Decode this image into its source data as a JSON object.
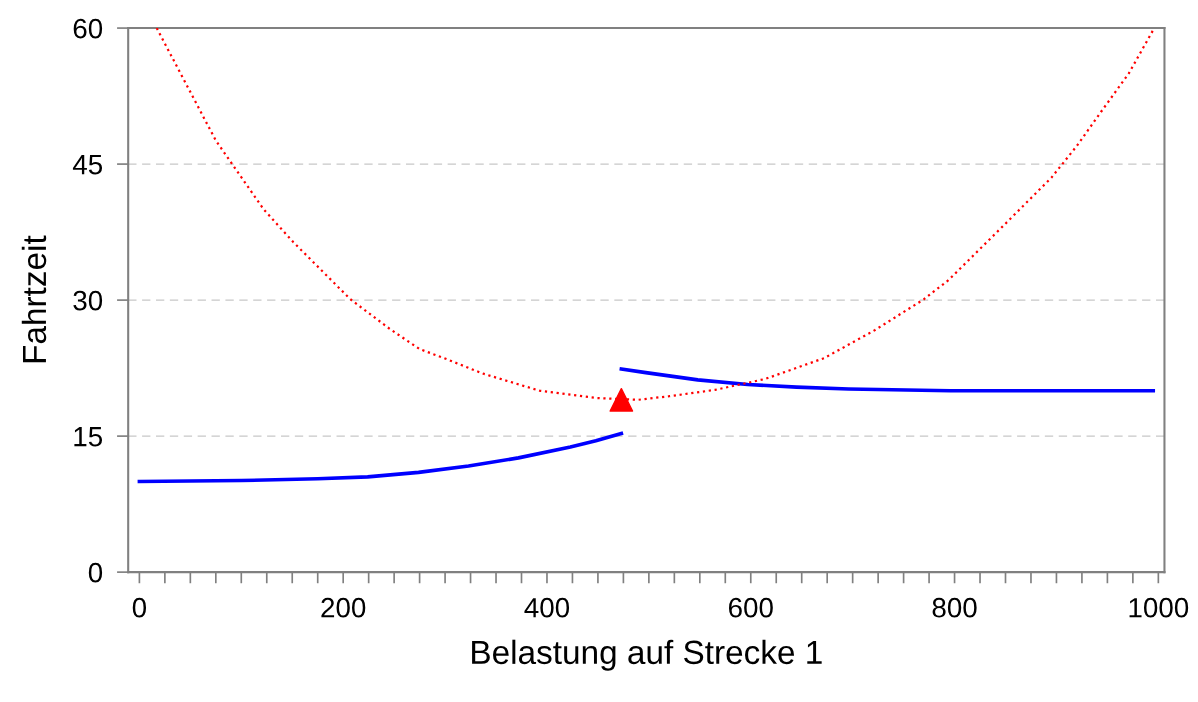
{
  "chart_data": {
    "type": "line",
    "xlabel": "Belastung auf Strecke 1",
    "ylabel": "Fahrtzeit",
    "xlim": [
      -11,
      1006
    ],
    "ylim": [
      0,
      60
    ],
    "xticks": [
      0,
      {
        "value": 25,
        "label": null
      },
      {
        "value": 50,
        "label": null
      },
      {
        "value": 75,
        "label": null
      },
      {
        "value": 100,
        "label": null
      },
      {
        "value": 125,
        "label": null
      },
      {
        "value": 150,
        "label": null
      },
      {
        "value": 175,
        "label": null
      },
      200,
      {
        "value": 225,
        "label": null
      },
      {
        "value": 250,
        "label": null
      },
      {
        "value": 275,
        "label": null
      },
      {
        "value": 300,
        "label": null
      },
      {
        "value": 325,
        "label": null
      },
      {
        "value": 350,
        "label": null
      },
      {
        "value": 375,
        "label": null
      },
      400,
      {
        "value": 425,
        "label": null
      },
      {
        "value": 450,
        "label": null
      },
      {
        "value": 475,
        "label": null
      },
      {
        "value": 500,
        "label": null
      },
      {
        "value": 525,
        "label": null
      },
      {
        "value": 550,
        "label": null
      },
      {
        "value": 575,
        "label": null
      },
      600,
      {
        "value": 625,
        "label": null
      },
      {
        "value": 650,
        "label": null
      },
      {
        "value": 675,
        "label": null
      },
      {
        "value": 700,
        "label": null
      },
      {
        "value": 725,
        "label": null
      },
      {
        "value": 750,
        "label": null
      },
      {
        "value": 775,
        "label": null
      },
      800,
      {
        "value": 825,
        "label": null
      },
      {
        "value": 850,
        "label": null
      },
      {
        "value": 875,
        "label": null
      },
      {
        "value": 900,
        "label": null
      },
      {
        "value": 925,
        "label": null
      },
      {
        "value": 950,
        "label": null
      },
      {
        "value": 975,
        "label": null
      },
      1000
    ],
    "yticks": [
      0,
      15,
      30,
      45,
      60
    ],
    "grid": "y",
    "series": [
      {
        "color": "#0000ff",
        "line_style": "solid",
        "marker": "none",
        "x": [
          0,
          100,
          175,
          224,
          274,
          323,
          372,
          423,
          448,
          473
        ],
        "values": [
          10.0,
          10.1,
          10.3,
          10.5,
          11.0,
          11.7,
          12.6,
          13.8,
          14.5,
          15.3
        ]
      },
      {
        "color": "#0000ff",
        "line_style": "solid",
        "marker": "none",
        "x": [
          473,
          497,
          548,
          597,
          645,
          696,
          796,
          995
        ],
        "values": [
          22.4,
          22.0,
          21.2,
          20.7,
          20.4,
          20.2,
          20.0,
          20.0
        ]
      },
      {
        "color": "#ff0000",
        "line_style": "dotted",
        "marker": "none",
        "x": [
          17,
          75,
          122,
          151,
          207,
          246,
          275,
          299,
          337,
          393,
          449,
          489,
          520,
          565,
          614,
          672,
          722,
          770,
          794,
          847,
          895,
          920,
          944,
          971,
          995
        ],
        "values": [
          60.0,
          47.6,
          40.0,
          36.4,
          30.1,
          26.8,
          24.6,
          23.6,
          21.9,
          20.0,
          19.2,
          19.0,
          19.4,
          20.1,
          21.3,
          23.6,
          26.7,
          30.1,
          32.2,
          38.1,
          43.5,
          47.0,
          50.8,
          55.0,
          59.8
        ]
      },
      {
        "type": "scatter",
        "color": "#ff0000",
        "marker": "triangle",
        "x": [
          473
        ],
        "values": [
          19.0
        ]
      }
    ]
  }
}
